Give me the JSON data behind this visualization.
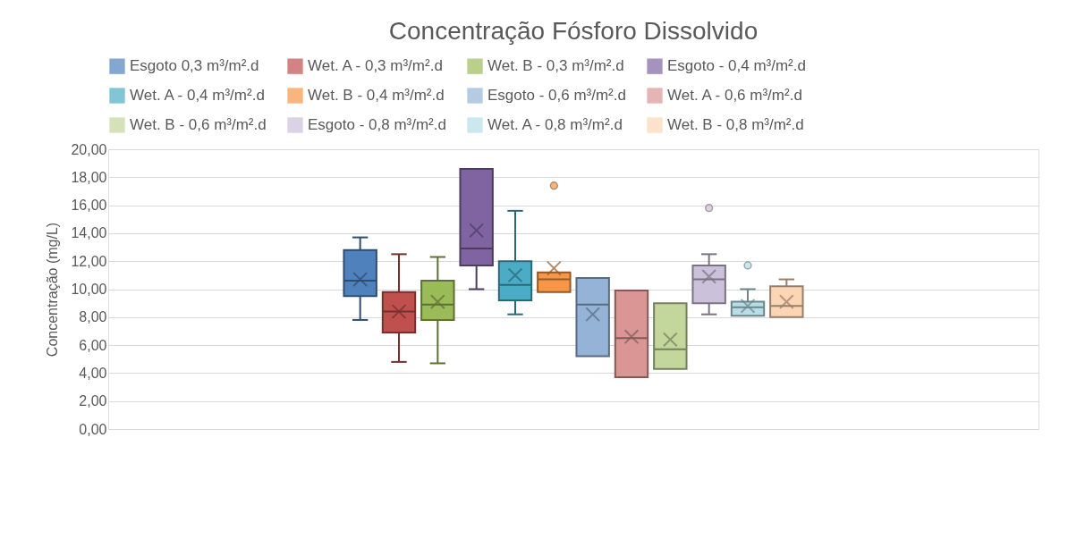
{
  "chart_data": {
    "type": "box",
    "title": "Concentração Fósforo Dissolvido",
    "ylabel": "Concentração (mg/L)",
    "categories": [
      null
    ],
    "ylim": [
      0,
      20
    ],
    "yticks": [
      {
        "value": 0,
        "label": "0,00"
      },
      {
        "value": 2,
        "label": "2,00"
      },
      {
        "value": 4,
        "label": "4,00"
      },
      {
        "value": 6,
        "label": "6,00"
      },
      {
        "value": 8,
        "label": "8,00"
      },
      {
        "value": 10,
        "label": "10,00"
      },
      {
        "value": 12,
        "label": "12,00"
      },
      {
        "value": 14,
        "label": "14,00"
      },
      {
        "value": 16,
        "label": "16,00"
      },
      {
        "value": 18,
        "label": "18,00"
      },
      {
        "value": 20,
        "label": "20,00"
      }
    ],
    "grid": "y",
    "legend": "top",
    "series": [
      {
        "name": "Esgoto 0,3 m³/m².d",
        "color": "#4f81bd",
        "boxes": [
          {
            "low": 7.8,
            "q1": 9.5,
            "median": 10.6,
            "q3": 12.8,
            "high": 13.7,
            "mean": 10.7
          }
        ]
      },
      {
        "name": "Wet. A - 0,3 m³/m².d",
        "color": "#c0504d",
        "boxes": [
          {
            "low": 4.8,
            "q1": 6.9,
            "median": 8.4,
            "q3": 9.8,
            "high": 12.5,
            "mean": 8.4
          }
        ]
      },
      {
        "name": "Wet. B - 0,3 m³/m².d",
        "color": "#9bbb59",
        "boxes": [
          {
            "low": 4.7,
            "q1": 7.8,
            "median": 8.9,
            "q3": 10.6,
            "high": 12.3,
            "mean": 9.1
          }
        ]
      },
      {
        "name": "Esgoto - 0,4 m³/m².d",
        "color": "#8064a2",
        "boxes": [
          {
            "low": 10.0,
            "q1": 11.7,
            "median": 12.9,
            "q3": 18.6,
            "high": 18.6,
            "mean": 14.2
          }
        ]
      },
      {
        "name": "Wet. A - 0,4 m³/m².d",
        "color": "#4bacc6",
        "boxes": [
          {
            "low": 8.2,
            "q1": 9.2,
            "median": 10.3,
            "q3": 12.0,
            "high": 15.6,
            "mean": 11.0
          }
        ]
      },
      {
        "name": "Wet. B - 0,4 m³/m².d",
        "color": "#f79646",
        "boxes": [
          {
            "low": 9.8,
            "q1": 9.8,
            "median": 10.7,
            "q3": 11.2,
            "high": 11.2,
            "mean": 11.5,
            "outliers": [
              17.4
            ]
          }
        ]
      },
      {
        "name": "Esgoto - 0,6 m³/m².d",
        "color": "#95b3d7",
        "boxes": [
          {
            "low": 5.2,
            "q1": 5.2,
            "median": 8.9,
            "q3": 10.8,
            "high": 10.8,
            "mean": 8.2
          }
        ]
      },
      {
        "name": "Wet. A - 0,6 m³/m².d",
        "color": "#d99694",
        "boxes": [
          {
            "low": 3.7,
            "q1": 3.7,
            "median": 6.5,
            "q3": 9.9,
            "high": 9.9,
            "mean": 6.6
          }
        ]
      },
      {
        "name": "Wet. B - 0,6 m³/m².d",
        "color": "#c3d69b",
        "boxes": [
          {
            "low": 4.3,
            "q1": 4.3,
            "median": 5.7,
            "q3": 9.0,
            "high": 9.0,
            "mean": 6.4
          }
        ]
      },
      {
        "name": "Esgoto - 0,8 m³/m².d",
        "color": "#ccc1da",
        "boxes": [
          {
            "low": 8.2,
            "q1": 9.0,
            "median": 10.7,
            "q3": 11.7,
            "high": 12.5,
            "mean": 10.9,
            "outliers": [
              15.8
            ]
          }
        ]
      },
      {
        "name": "Wet. A - 0,8 m³/m².d",
        "color": "#b7dee8",
        "boxes": [
          {
            "low": 8.1,
            "q1": 8.1,
            "median": 8.7,
            "q3": 9.1,
            "high": 10.0,
            "mean": 8.8,
            "outliers": [
              11.7
            ]
          }
        ]
      },
      {
        "name": "Wet. B - 0,8 m³/m².d",
        "color": "#fcd5b5",
        "boxes": [
          {
            "low": 8.0,
            "q1": 8.0,
            "median": 8.8,
            "q3": 10.2,
            "high": 10.7,
            "mean": 9.1
          }
        ]
      }
    ]
  }
}
